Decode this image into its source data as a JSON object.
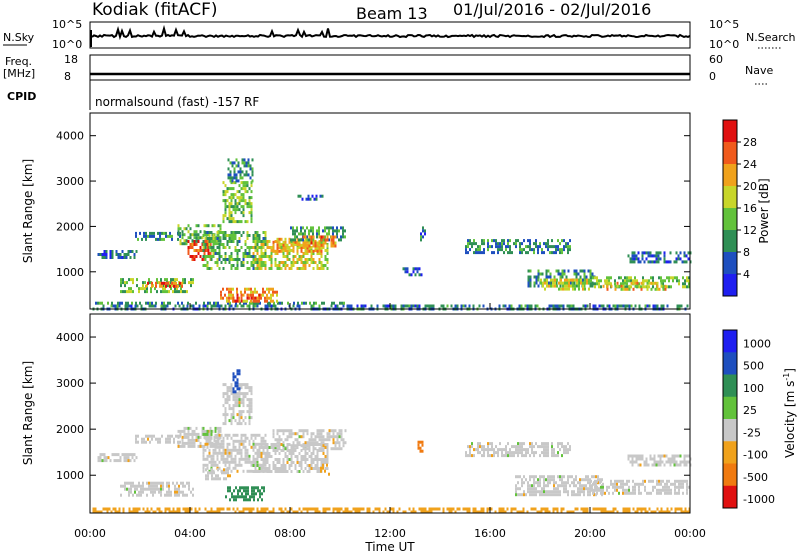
{
  "header": {
    "station": "Kodiak (fitACF)",
    "beam": "Beam 13",
    "date_range": "01/Jul/2016 - 02/Jul/2016"
  },
  "colors": {
    "power_scale": [
      "#1f1ff0",
      "#1e4fbf",
      "#2f8f55",
      "#62c23b",
      "#c8d62a",
      "#f0a21c",
      "#f05a1c",
      "#e01010"
    ],
    "velocity_scale": [
      "#1f1ff0",
      "#1e4fbf",
      "#2f8f55",
      "#62c23b",
      "#c8c8c8",
      "#f0a21c",
      "#f07a10",
      "#e01010"
    ],
    "gray_fill": "#c8c8c8"
  },
  "small_panels": {
    "nsky_label": "N.Sky",
    "nsky_ticks": [
      "10^5",
      "10^0"
    ],
    "nsearch_label": "N.Search",
    "nsearch_ticks": [
      "10^5",
      "10^0"
    ],
    "freq_label": "Freq.",
    "freq_unit": "[MHz]",
    "freq_ticks": [
      "18",
      "8"
    ],
    "nave_label": "Nave",
    "nave_ticks": [
      "60",
      "0"
    ],
    "cpid_label": "CPID",
    "cpid_text": "normalsound (fast) -157 RF"
  },
  "chart_data": [
    {
      "type": "heatmap",
      "name": "power",
      "ylabel": "Slant Range [km]",
      "ylim": [
        180,
        4500
      ],
      "yticks": [
        "4000",
        "3000",
        "2000",
        "1000"
      ],
      "xlim": [
        0,
        24
      ],
      "colorbar": {
        "label": "Power [dB]",
        "ticks": [
          "28",
          "24",
          "20",
          "16",
          "12",
          "8",
          "4"
        ],
        "range": [
          0,
          32
        ]
      },
      "patches": [
        {
          "t0": 0.1,
          "t1": 24,
          "r0": 200,
          "r1": 280,
          "v": 8
        },
        {
          "t0": 0.2,
          "t1": 10.2,
          "r0": 280,
          "r1": 340,
          "v": 10
        },
        {
          "t0": 0.3,
          "t1": 1.9,
          "r0": 1320,
          "r1": 1480,
          "v": 7
        },
        {
          "t0": 1.8,
          "t1": 3.6,
          "r0": 1700,
          "r1": 1880,
          "v": 9
        },
        {
          "t0": 1.2,
          "t1": 4.1,
          "r0": 580,
          "r1": 860,
          "v": 14
        },
        {
          "t0": 2.2,
          "t1": 3.7,
          "r0": 650,
          "r1": 780,
          "v": 26
        },
        {
          "t0": 3.5,
          "t1": 5.2,
          "r0": 1650,
          "r1": 2050,
          "v": 13
        },
        {
          "t0": 3.9,
          "t1": 4.8,
          "r0": 1250,
          "r1": 1700,
          "v": 27
        },
        {
          "t0": 5.2,
          "t1": 7.5,
          "r0": 350,
          "r1": 650,
          "v": 22
        },
        {
          "t0": 5.7,
          "t1": 6.8,
          "r0": 380,
          "r1": 520,
          "v": 28
        },
        {
          "t0": 4.5,
          "t1": 7.0,
          "r0": 1100,
          "r1": 1900,
          "v": 12
        },
        {
          "t0": 5.3,
          "t1": 6.5,
          "r0": 2100,
          "r1": 3000,
          "v": 15
        },
        {
          "t0": 6.5,
          "t1": 9.5,
          "r0": 1100,
          "r1": 1700,
          "v": 18
        },
        {
          "t0": 7.3,
          "t1": 9.3,
          "r0": 1450,
          "r1": 1750,
          "v": 22
        },
        {
          "t0": 8.0,
          "t1": 10.2,
          "r0": 1700,
          "r1": 2000,
          "v": 11
        },
        {
          "t0": 8.5,
          "t1": 9.8,
          "r0": 1550,
          "r1": 1800,
          "v": 24
        },
        {
          "t0": 5.5,
          "t1": 6.5,
          "r0": 3000,
          "r1": 3500,
          "v": 9
        },
        {
          "t0": 8.3,
          "t1": 9.3,
          "r0": 2600,
          "r1": 2700,
          "v": 6
        },
        {
          "t0": 12.5,
          "t1": 13.3,
          "r0": 950,
          "r1": 1100,
          "v": 6
        },
        {
          "t0": 13.2,
          "t1": 13.4,
          "r0": 1700,
          "r1": 2000,
          "v": 8
        },
        {
          "t0": 15.0,
          "t1": 19.2,
          "r0": 1450,
          "r1": 1720,
          "v": 9
        },
        {
          "t0": 17.5,
          "t1": 20.2,
          "r0": 700,
          "r1": 1050,
          "v": 10
        },
        {
          "t0": 18.0,
          "t1": 20.0,
          "r0": 650,
          "r1": 850,
          "v": 18
        },
        {
          "t0": 20.0,
          "t1": 24.0,
          "r0": 700,
          "r1": 900,
          "v": 14
        },
        {
          "t0": 20.5,
          "t1": 23.0,
          "r0": 600,
          "r1": 780,
          "v": 20
        },
        {
          "t0": 21.5,
          "t1": 24.0,
          "r0": 1250,
          "r1": 1450,
          "v": 7
        }
      ]
    },
    {
      "type": "heatmap",
      "name": "velocity",
      "ylabel": "Slant Range [km]",
      "ylim": [
        180,
        4500
      ],
      "yticks": [
        "4000",
        "3000",
        "2000",
        "1000"
      ],
      "xlim": [
        0,
        24
      ],
      "xticks": [
        "00:00",
        "04:00",
        "08:00",
        "12:00",
        "16:00",
        "20:00",
        "00:00"
      ],
      "xlabel": "Time UT",
      "colorbar": {
        "label": "Velocity [m s",
        "label_sup": "-1",
        "label_end": "]",
        "ticks": [
          "1000",
          "500",
          "100",
          "25",
          "-25",
          "-100",
          "-500",
          "-1000"
        ]
      },
      "patches": [
        {
          "t0": 0.3,
          "t1": 1.9,
          "r0": 1320,
          "r1": 1480,
          "c": 4
        },
        {
          "t0": 1.8,
          "t1": 3.6,
          "r0": 1700,
          "r1": 1880,
          "c": 4
        },
        {
          "t0": 1.2,
          "t1": 4.1,
          "r0": 580,
          "r1": 860,
          "c": 4
        },
        {
          "t0": 3.5,
          "t1": 5.2,
          "r0": 1650,
          "r1": 2050,
          "c": 4
        },
        {
          "t0": 4.5,
          "t1": 7.0,
          "r0": 1100,
          "r1": 1900,
          "c": 4
        },
        {
          "t0": 5.3,
          "t1": 6.5,
          "r0": 2100,
          "r1": 3000,
          "c": 4
        },
        {
          "t0": 5.4,
          "t1": 7.0,
          "r0": 450,
          "r1": 760,
          "c": 2
        },
        {
          "t0": 4.6,
          "t1": 5.6,
          "r0": 900,
          "r1": 1150,
          "c": 4
        },
        {
          "t0": 6.5,
          "t1": 9.5,
          "r0": 1100,
          "r1": 1700,
          "c": 4
        },
        {
          "t0": 7.3,
          "t1": 10.2,
          "r0": 1600,
          "r1": 2000,
          "c": 4
        },
        {
          "t0": 4.5,
          "t1": 5.0,
          "r0": 1900,
          "r1": 2050,
          "c": 3
        },
        {
          "t0": 5.7,
          "t1": 6.0,
          "r0": 2800,
          "r1": 3300,
          "c": 1
        },
        {
          "t0": 9.2,
          "t1": 9.6,
          "r0": 1050,
          "r1": 1250,
          "c": 5
        },
        {
          "t0": 13.1,
          "t1": 13.3,
          "r0": 1550,
          "r1": 1750,
          "c": 6
        },
        {
          "t0": 15.0,
          "t1": 19.2,
          "r0": 1450,
          "r1": 1720,
          "c": 4
        },
        {
          "t0": 17.0,
          "t1": 20.5,
          "r0": 600,
          "r1": 1000,
          "c": 4
        },
        {
          "t0": 20.0,
          "t1": 24.0,
          "r0": 600,
          "r1": 900,
          "c": 4
        },
        {
          "t0": 21.5,
          "t1": 24.0,
          "r0": 1250,
          "r1": 1450,
          "c": 4
        },
        {
          "t0": 0.1,
          "t1": 24,
          "r0": 200,
          "r1": 300,
          "c": 5
        }
      ]
    }
  ]
}
